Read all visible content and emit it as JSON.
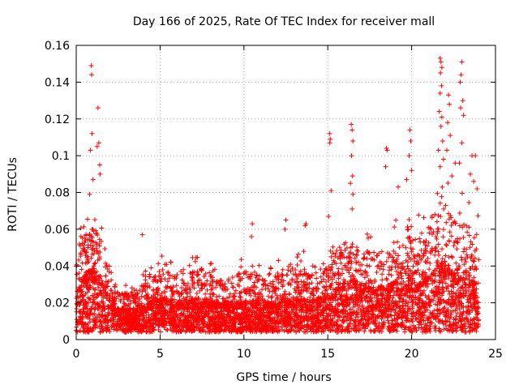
{
  "chart_data": {
    "type": "scatter",
    "title": "Day 166 of 2025, Rate Of TEC Index for receiver mall",
    "xlabel": "GPS time / hours",
    "ylabel": "ROTI / TECUs",
    "xlim": [
      0,
      25
    ],
    "ylim": [
      0,
      0.16
    ],
    "xticks": [
      0,
      5,
      10,
      15,
      20,
      25
    ],
    "yticks": [
      0,
      0.02,
      0.04,
      0.06,
      0.08,
      0.1,
      0.12,
      0.14,
      0.16
    ],
    "xtick_labels": [
      "0",
      "5",
      "10",
      "15",
      "20",
      "25"
    ],
    "ytick_labels": [
      "0",
      "0.02",
      "0.04",
      "0.06",
      "0.08",
      "0.1",
      "0.12",
      "0.14",
      "0.16"
    ],
    "grid": true,
    "marker": "+",
    "color": "#ff0000",
    "data_range_hours": [
      0,
      24
    ],
    "envelope": {
      "hours": [
        0,
        0.5,
        1,
        1.5,
        2,
        2.5,
        3,
        3.5,
        4,
        4.5,
        5,
        5.5,
        6,
        6.5,
        7,
        7.5,
        8,
        8.5,
        9,
        9.5,
        10,
        10.5,
        11,
        11.5,
        12,
        12.5,
        13,
        13.5,
        14,
        14.5,
        15,
        15.5,
        16,
        16.5,
        17,
        17.5,
        18,
        18.5,
        19,
        19.5,
        20,
        20.5,
        21,
        21.5,
        22,
        22.5,
        23,
        23.5,
        24
      ],
      "typical_roti": [
        0.022,
        0.03,
        0.032,
        0.028,
        0.02,
        0.015,
        0.014,
        0.014,
        0.016,
        0.018,
        0.019,
        0.019,
        0.018,
        0.018,
        0.019,
        0.019,
        0.018,
        0.017,
        0.017,
        0.017,
        0.018,
        0.018,
        0.017,
        0.017,
        0.017,
        0.018,
        0.019,
        0.019,
        0.018,
        0.019,
        0.021,
        0.024,
        0.027,
        0.028,
        0.025,
        0.024,
        0.024,
        0.025,
        0.026,
        0.026,
        0.027,
        0.026,
        0.029,
        0.033,
        0.035,
        0.031,
        0.028,
        0.027,
        0.025
      ],
      "upper_roti": [
        0.065,
        0.07,
        0.075,
        0.065,
        0.04,
        0.03,
        0.03,
        0.032,
        0.04,
        0.045,
        0.047,
        0.045,
        0.04,
        0.04,
        0.048,
        0.047,
        0.042,
        0.04,
        0.04,
        0.042,
        0.047,
        0.046,
        0.042,
        0.04,
        0.045,
        0.048,
        0.048,
        0.05,
        0.045,
        0.048,
        0.055,
        0.06,
        0.065,
        0.063,
        0.058,
        0.058,
        0.06,
        0.062,
        0.065,
        0.068,
        0.07,
        0.068,
        0.075,
        0.095,
        0.09,
        0.08,
        0.08,
        0.075,
        0.07
      ]
    },
    "outlier_points": [
      {
        "x": 0.9,
        "y": 0.149
      },
      {
        "x": 0.92,
        "y": 0.144
      },
      {
        "x": 0.95,
        "y": 0.112
      },
      {
        "x": 0.85,
        "y": 0.103
      },
      {
        "x": 1.3,
        "y": 0.126
      },
      {
        "x": 1.35,
        "y": 0.107
      },
      {
        "x": 1.25,
        "y": 0.105
      },
      {
        "x": 1.4,
        "y": 0.095
      },
      {
        "x": 1.42,
        "y": 0.09
      },
      {
        "x": 1.0,
        "y": 0.087
      },
      {
        "x": 0.8,
        "y": 0.079
      },
      {
        "x": 3.95,
        "y": 0.057
      },
      {
        "x": 10.5,
        "y": 0.063
      },
      {
        "x": 10.45,
        "y": 0.056
      },
      {
        "x": 12.5,
        "y": 0.065
      },
      {
        "x": 12.45,
        "y": 0.06
      },
      {
        "x": 13.7,
        "y": 0.063
      },
      {
        "x": 13.65,
        "y": 0.062
      },
      {
        "x": 15.1,
        "y": 0.112
      },
      {
        "x": 15.15,
        "y": 0.109
      },
      {
        "x": 15.12,
        "y": 0.107
      },
      {
        "x": 15.2,
        "y": 0.081
      },
      {
        "x": 15.05,
        "y": 0.067
      },
      {
        "x": 16.4,
        "y": 0.117
      },
      {
        "x": 16.45,
        "y": 0.114
      },
      {
        "x": 16.5,
        "y": 0.108
      },
      {
        "x": 16.42,
        "y": 0.1
      },
      {
        "x": 16.48,
        "y": 0.089
      },
      {
        "x": 16.35,
        "y": 0.085
      },
      {
        "x": 16.5,
        "y": 0.079
      },
      {
        "x": 16.45,
        "y": 0.071
      },
      {
        "x": 18.5,
        "y": 0.104
      },
      {
        "x": 18.55,
        "y": 0.103
      },
      {
        "x": 18.45,
        "y": 0.094
      },
      {
        "x": 19.9,
        "y": 0.114
      },
      {
        "x": 19.95,
        "y": 0.108
      },
      {
        "x": 19.85,
        "y": 0.1
      },
      {
        "x": 20.0,
        "y": 0.092
      },
      {
        "x": 19.2,
        "y": 0.083
      },
      {
        "x": 19.7,
        "y": 0.087
      },
      {
        "x": 21.7,
        "y": 0.153
      },
      {
        "x": 21.75,
        "y": 0.151
      },
      {
        "x": 21.8,
        "y": 0.148
      },
      {
        "x": 21.72,
        "y": 0.145
      },
      {
        "x": 21.78,
        "y": 0.138
      },
      {
        "x": 21.7,
        "y": 0.134
      },
      {
        "x": 21.65,
        "y": 0.124
      },
      {
        "x": 21.8,
        "y": 0.121
      },
      {
        "x": 21.75,
        "y": 0.116
      },
      {
        "x": 21.85,
        "y": 0.108
      },
      {
        "x": 21.6,
        "y": 0.103
      },
      {
        "x": 21.9,
        "y": 0.098
      },
      {
        "x": 21.7,
        "y": 0.094
      },
      {
        "x": 22.2,
        "y": 0.133
      },
      {
        "x": 22.25,
        "y": 0.128
      },
      {
        "x": 22.15,
        "y": 0.118
      },
      {
        "x": 22.3,
        "y": 0.111
      },
      {
        "x": 22.1,
        "y": 0.103
      },
      {
        "x": 23.0,
        "y": 0.151
      },
      {
        "x": 22.95,
        "y": 0.144
      },
      {
        "x": 22.9,
        "y": 0.14
      },
      {
        "x": 23.05,
        "y": 0.13
      },
      {
        "x": 22.92,
        "y": 0.126
      },
      {
        "x": 23.1,
        "y": 0.122
      },
      {
        "x": 23.0,
        "y": 0.107
      },
      {
        "x": 22.85,
        "y": 0.096
      },
      {
        "x": 23.6,
        "y": 0.1
      },
      {
        "x": 23.8,
        "y": 0.1
      },
      {
        "x": 23.5,
        "y": 0.09
      },
      {
        "x": 23.7,
        "y": 0.086
      },
      {
        "x": 23.9,
        "y": 0.082
      },
      {
        "x": 22.6,
        "y": 0.096
      },
      {
        "x": 22.4,
        "y": 0.089
      }
    ]
  }
}
